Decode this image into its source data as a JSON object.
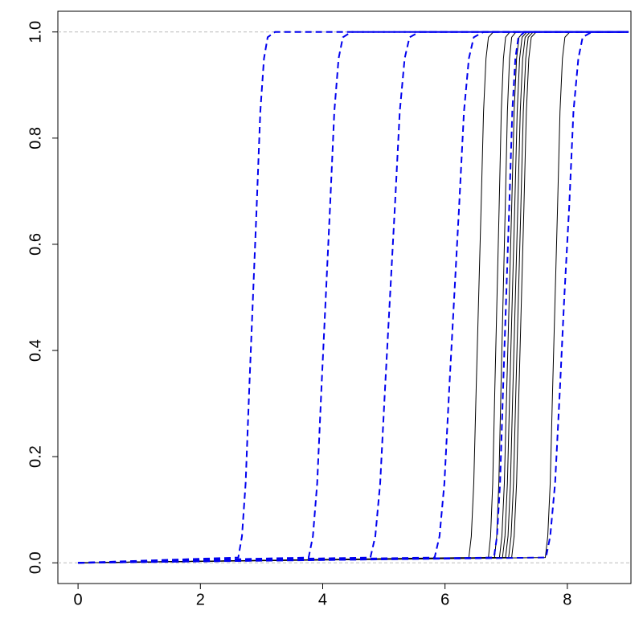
{
  "chart_data": {
    "type": "line",
    "xlim": [
      -0.33,
      9.04
    ],
    "ylim": [
      -0.039,
      1.039
    ],
    "xticks": [
      0,
      2,
      4,
      6,
      8
    ],
    "yticks": [
      {
        "value": 0,
        "label": "0.0"
      },
      {
        "value": 0.2,
        "label": "0.2"
      },
      {
        "value": 0.4,
        "label": "0.4"
      },
      {
        "value": 0.6,
        "label": "0.6"
      },
      {
        "value": 0.8,
        "label": "0.8"
      },
      {
        "value": 1,
        "label": "1.0"
      }
    ],
    "reference_lines": [
      0,
      1
    ],
    "reference_color": "#bbbbbb",
    "series": [
      {
        "color": "#000000",
        "linestyle": "solid",
        "x": [
          0,
          6.39,
          6.43,
          6.47,
          6.51,
          6.55,
          6.59,
          6.63,
          6.67,
          6.71,
          6.79,
          9
        ],
        "values": [
          0,
          0.01,
          0.05,
          0.15,
          0.33,
          0.5,
          0.67,
          0.85,
          0.95,
          0.99,
          1,
          1
        ]
      },
      {
        "color": "#000000",
        "linestyle": "solid",
        "x": [
          0,
          6.71,
          6.745,
          6.78,
          6.815,
          6.85,
          6.885,
          6.92,
          6.955,
          6.99,
          7.06,
          9
        ],
        "values": [
          0,
          0.01,
          0.05,
          0.15,
          0.33,
          0.5,
          0.67,
          0.85,
          0.95,
          0.99,
          1,
          1
        ]
      },
      {
        "color": "#000000",
        "linestyle": "solid",
        "x": [
          0,
          6.81,
          6.845,
          6.88,
          6.915,
          6.95,
          6.985,
          7.02,
          7.055,
          7.09,
          7.16,
          9
        ],
        "values": [
          0,
          0.01,
          0.05,
          0.15,
          0.33,
          0.5,
          0.67,
          0.85,
          0.95,
          0.99,
          1,
          1
        ]
      },
      {
        "color": "#000000",
        "linestyle": "solid",
        "x": [
          0,
          6.89,
          6.93,
          6.97,
          7.01,
          7.05,
          7.09,
          7.13,
          7.17,
          7.21,
          7.29,
          9
        ],
        "values": [
          0,
          0.01,
          0.05,
          0.15,
          0.33,
          0.5,
          0.67,
          0.85,
          0.95,
          0.99,
          1,
          1
        ]
      },
      {
        "color": "#000000",
        "linestyle": "solid",
        "x": [
          0,
          6.94,
          6.98,
          7.02,
          7.06,
          7.1,
          7.14,
          7.18,
          7.22,
          7.26,
          7.34,
          9
        ],
        "values": [
          0,
          0.01,
          0.05,
          0.15,
          0.33,
          0.5,
          0.67,
          0.85,
          0.95,
          0.99,
          1,
          1
        ]
      },
      {
        "color": "#000000",
        "linestyle": "solid",
        "x": [
          0,
          6.99,
          7.03,
          7.07,
          7.11,
          7.15,
          7.19,
          7.23,
          7.27,
          7.31,
          7.39,
          9
        ],
        "values": [
          0,
          0.01,
          0.05,
          0.15,
          0.33,
          0.5,
          0.67,
          0.85,
          0.95,
          0.99,
          1,
          1
        ]
      },
      {
        "color": "#000000",
        "linestyle": "solid",
        "x": [
          0,
          7.04,
          7.08,
          7.12,
          7.16,
          7.2,
          7.24,
          7.28,
          7.32,
          7.36,
          7.44,
          9
        ],
        "values": [
          0,
          0.01,
          0.05,
          0.15,
          0.33,
          0.5,
          0.67,
          0.85,
          0.95,
          0.99,
          1,
          1
        ]
      },
      {
        "color": "#000000",
        "linestyle": "solid",
        "x": [
          0,
          7.09,
          7.13,
          7.17,
          7.21,
          7.25,
          7.29,
          7.33,
          7.37,
          7.41,
          7.49,
          9
        ],
        "values": [
          0,
          0.01,
          0.05,
          0.15,
          0.33,
          0.5,
          0.67,
          0.85,
          0.95,
          0.99,
          1,
          1
        ]
      },
      {
        "color": "#000000",
        "linestyle": "solid",
        "x": [
          0,
          7.64,
          7.68,
          7.72,
          7.76,
          7.8,
          7.84,
          7.88,
          7.92,
          7.96,
          8.04,
          9
        ],
        "values": [
          0,
          0.01,
          0.05,
          0.15,
          0.33,
          0.5,
          0.67,
          0.85,
          0.95,
          0.99,
          1,
          1
        ]
      },
      {
        "color": "#0000ee",
        "linestyle": "dashed",
        "x": [
          0,
          2.62,
          2.68,
          2.74,
          2.8,
          2.86,
          2.92,
          2.98,
          3.04,
          3.1,
          3.22,
          9
        ],
        "values": [
          0,
          0.01,
          0.05,
          0.15,
          0.33,
          0.5,
          0.67,
          0.85,
          0.95,
          0.99,
          1,
          1
        ]
      },
      {
        "color": "#0000ee",
        "linestyle": "dashed",
        "x": [
          0,
          3.77,
          3.84,
          3.91,
          3.98,
          4.05,
          4.12,
          4.19,
          4.26,
          4.33,
          4.47,
          9
        ],
        "values": [
          0,
          0.01,
          0.05,
          0.15,
          0.33,
          0.5,
          0.67,
          0.85,
          0.95,
          0.99,
          1,
          1
        ]
      },
      {
        "color": "#0000ee",
        "linestyle": "dashed",
        "x": [
          0,
          4.78,
          4.86,
          4.94,
          5.02,
          5.1,
          5.18,
          5.26,
          5.34,
          5.42,
          5.58,
          9
        ],
        "values": [
          0,
          0.01,
          0.05,
          0.15,
          0.33,
          0.5,
          0.67,
          0.85,
          0.95,
          0.99,
          1,
          1
        ]
      },
      {
        "color": "#0000ee",
        "linestyle": "dashed",
        "x": [
          0,
          5.83,
          5.91,
          5.99,
          6.07,
          6.15,
          6.23,
          6.31,
          6.39,
          6.47,
          6.63,
          9
        ],
        "values": [
          0,
          0.01,
          0.05,
          0.15,
          0.33,
          0.5,
          0.67,
          0.85,
          0.95,
          0.99,
          1,
          1
        ]
      },
      {
        "color": "#0000ee",
        "linestyle": "dashed",
        "x": [
          0,
          6.8,
          6.85,
          6.9,
          6.95,
          7.0,
          7.05,
          7.1,
          7.15,
          7.2,
          7.3,
          9
        ],
        "values": [
          0,
          0.01,
          0.05,
          0.15,
          0.33,
          0.5,
          0.67,
          0.85,
          0.95,
          0.99,
          1,
          1
        ]
      },
      {
        "color": "#0000ee",
        "linestyle": "dashed",
        "x": [
          0,
          7.65,
          7.72,
          7.8,
          7.88,
          7.95,
          8.03,
          8.1,
          8.18,
          8.25,
          8.4,
          9
        ],
        "values": [
          0,
          0.01,
          0.05,
          0.15,
          0.33,
          0.5,
          0.67,
          0.85,
          0.95,
          0.99,
          1,
          1
        ]
      }
    ]
  }
}
